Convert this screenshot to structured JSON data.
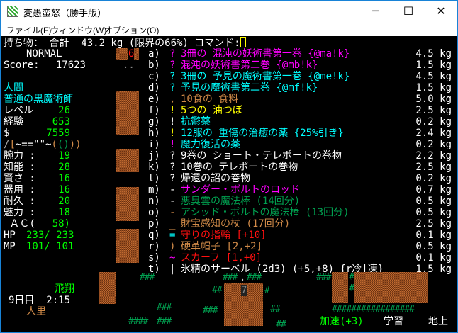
{
  "window": {
    "title": "変愚蛮怒（勝手版）",
    "minimize": "─",
    "maximize": "☐",
    "close": "✕"
  },
  "menu": [
    "ファイル(F)",
    "ウィンドウ(W)",
    "オプション(O)"
  ],
  "header": {
    "prompt": "持ち物： 合計  43.2 kg (限界の66%) コマンド:"
  },
  "status": {
    "mode": "NORMAL",
    "score_label": "Score:",
    "score": "17623",
    "race": "人間",
    "class": "普通の黒魔術師",
    "level_label": "レベル",
    "level": "26",
    "exp_label": "経験",
    "exp": "653",
    "gold_label": "$",
    "gold": "7559",
    "equip": [
      {
        "ch": "/",
        "color": "#aaaaaa"
      },
      {
        "ch": "[",
        "color": "#d08a48"
      },
      {
        "ch": "~==\"\"~",
        "color": "#ffffff"
      },
      {
        "ch": "(",
        "color": "#d08a48"
      },
      {
        "ch": "()",
        "color": "#00a050"
      },
      {
        "ch": "))",
        "color": "#d08a48"
      }
    ],
    "stats": [
      {
        "label": "腕力 :",
        "value": "19"
      },
      {
        "label": "知能 :",
        "value": "28"
      },
      {
        "label": "賢さ :",
        "value": "16"
      },
      {
        "label": "器用 :",
        "value": "16"
      },
      {
        "label": "耐久 :",
        "value": "20"
      },
      {
        "label": "魅力 :",
        "value": "18"
      }
    ],
    "ac_label": " ＡＣ(",
    "ac": "58)",
    "hp_label": "HP",
    "hp": "233/ 233",
    "mp_label": "MP",
    "mp": "101/ 101",
    "flying": "飛翔",
    "day": "9日目  2:15",
    "location": "人里",
    "speed": "加速(+3)",
    "study": "学習",
    "depth": "地上"
  },
  "inventory": [
    {
      "letter": "a)",
      "sym": "?",
      "sym_color": "#ff00ff",
      "name": "3冊の 混沌の妖術書第一巻 {@ma!k}",
      "color": "#ff00ff",
      "weight": "4.5 kg"
    },
    {
      "letter": "b)",
      "sym": "?",
      "sym_color": "#ff00ff",
      "name": "混沌の妖術書第二巻 {@mb!k}",
      "color": "#ff00ff",
      "weight": "1.5 kg"
    },
    {
      "letter": "c)",
      "sym": "?",
      "sym_color": "#00ffff",
      "name": "3冊の 予見の魔術書第一巻 {@me!k}",
      "color": "#00ffff",
      "weight": "4.5 kg"
    },
    {
      "letter": "d)",
      "sym": "?",
      "sym_color": "#00ffff",
      "name": "予見の魔術書第二巻 {@mf!k}",
      "color": "#00ffff",
      "weight": "1.5 kg"
    },
    {
      "letter": "e)",
      "sym": ",",
      "sym_color": "#d08a48",
      "name": "10食の 食料",
      "color": "#d08a48",
      "weight": "5.0 kg"
    },
    {
      "letter": "f)",
      "sym": "!",
      "sym_color": "#ffff00",
      "name": "5つの 油つぼ",
      "color": "#ffff00",
      "weight": "2.5 kg"
    },
    {
      "letter": "g)",
      "sym": "!",
      "sym_color": "#ffffff",
      "name": "抗鬱薬",
      "color": "#00ffff",
      "weight": "0.2 kg"
    },
    {
      "letter": "h)",
      "sym": "!",
      "sym_color": "#ffff00",
      "name": "12服の 重傷の治癒の薬 {25%引き}",
      "color": "#00ffff",
      "weight": "2.4 kg"
    },
    {
      "letter": "i)",
      "sym": "!",
      "sym_color": "#ff00ff",
      "name": "魔力復活の薬",
      "color": "#00ffff",
      "weight": "0.2 kg"
    },
    {
      "letter": "j)",
      "sym": "?",
      "sym_color": "#ffffff",
      "name": "9巻の ショート・テレポートの巻物",
      "color": "#ffffff",
      "weight": "2.2 kg"
    },
    {
      "letter": "k)",
      "sym": "?",
      "sym_color": "#ffffff",
      "name": "10巻の テレポートの巻物",
      "color": "#ffffff",
      "weight": "2.5 kg"
    },
    {
      "letter": "l)",
      "sym": "?",
      "sym_color": "#ffffff",
      "name": "帰還の詔の巻物",
      "color": "#ffffff",
      "weight": "0.2 kg"
    },
    {
      "letter": "m)",
      "sym": "-",
      "sym_color": "#ffffff",
      "name": "サンダー・ボルトのロッド",
      "color": "#ff00ff",
      "weight": "0.7 kg"
    },
    {
      "letter": "n)",
      "sym": "-",
      "sym_color": "#ffffff",
      "name": "悪臭雲の魔法棒 (14回分)",
      "color": "#00a050",
      "weight": "0.5 kg"
    },
    {
      "letter": "o)",
      "sym": "-",
      "sym_color": "#d08a48",
      "name": "アシッド・ボルトの魔法棒 (13回分)",
      "color": "#00a050",
      "weight": "0.5 kg"
    },
    {
      "letter": "p)",
      "sym": "_",
      "sym_color": "#d08a48",
      "name": "財宝感知の杖 (17回分)",
      "color": "#d08a48",
      "weight": "2.5 kg"
    },
    {
      "letter": "q)",
      "sym": "=",
      "sym_color": "#00ffff",
      "name": "守りの指輪 [+10]",
      "color": "#ff1010",
      "weight": "0.1 kg"
    },
    {
      "letter": "r)",
      "sym": ")",
      "sym_color": "#d08a48",
      "name": "硬革帽子 [2,+2]",
      "color": "#d08a48",
      "weight": "0.5 kg"
    },
    {
      "letter": "s)",
      "sym": "~",
      "sym_color": "#ff00ff",
      "name": "スカーフ [1,+0]",
      "color": "#ff1010",
      "weight": "0.1 kg"
    },
    {
      "letter": "t)",
      "sym": "|",
      "sym_color": "#ffffff",
      "name": "氷精のサーベル (2d3) (+5,+8) {r冷|凍}",
      "color": "#ffffff",
      "weight": "1.5 kg"
    }
  ],
  "map": {
    "monster_6": "6",
    "floor_dots": "..",
    "monster_7": "7",
    "door_dot": ".",
    "tree": "#",
    "tree_color": "#00a050",
    "wall_color": "#a0522d"
  }
}
